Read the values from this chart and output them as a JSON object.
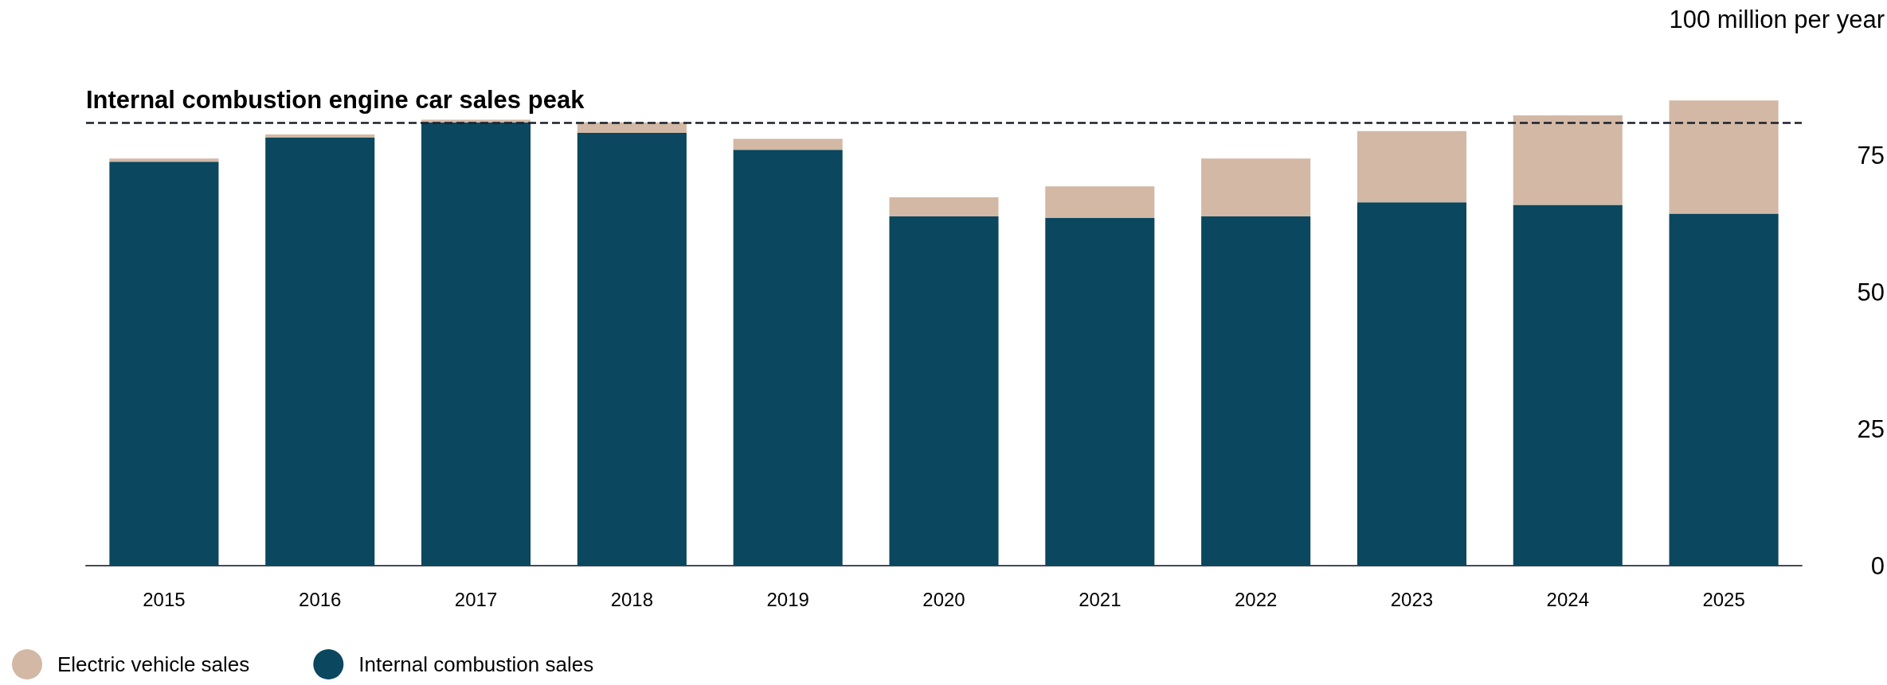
{
  "chart_data": {
    "type": "bar",
    "stacked": true,
    "categories": [
      "2015",
      "2016",
      "2017",
      "2018",
      "2019",
      "2020",
      "2021",
      "2022",
      "2023",
      "2024",
      "2025"
    ],
    "series": [
      {
        "name": "Internal combustion sales",
        "color": "#0b475e",
        "values": [
          73.9,
          78.3,
          81.1,
          79.2,
          76.1,
          63.9,
          63.6,
          63.9,
          66.5,
          66.0,
          64.4
        ]
      },
      {
        "name": "Electric vehicle sales",
        "color": "#d2b8a5",
        "values": [
          0.6,
          0.6,
          0.5,
          1.9,
          2.0,
          3.5,
          5.8,
          10.6,
          13.0,
          16.4,
          20.7
        ]
      }
    ],
    "ylim": [
      0,
      100
    ],
    "yticks": [
      0,
      25,
      50,
      75,
      {
        "value": 100,
        "label": "100 million per year"
      }
    ],
    "ref_lines": [
      {
        "axis": "y",
        "value": 81,
        "label": "Internal combustion engine car sales peak",
        "color": "#1a1f2b",
        "line_style": "dashed"
      }
    ],
    "grid": false,
    "legend": "bottom left"
  }
}
